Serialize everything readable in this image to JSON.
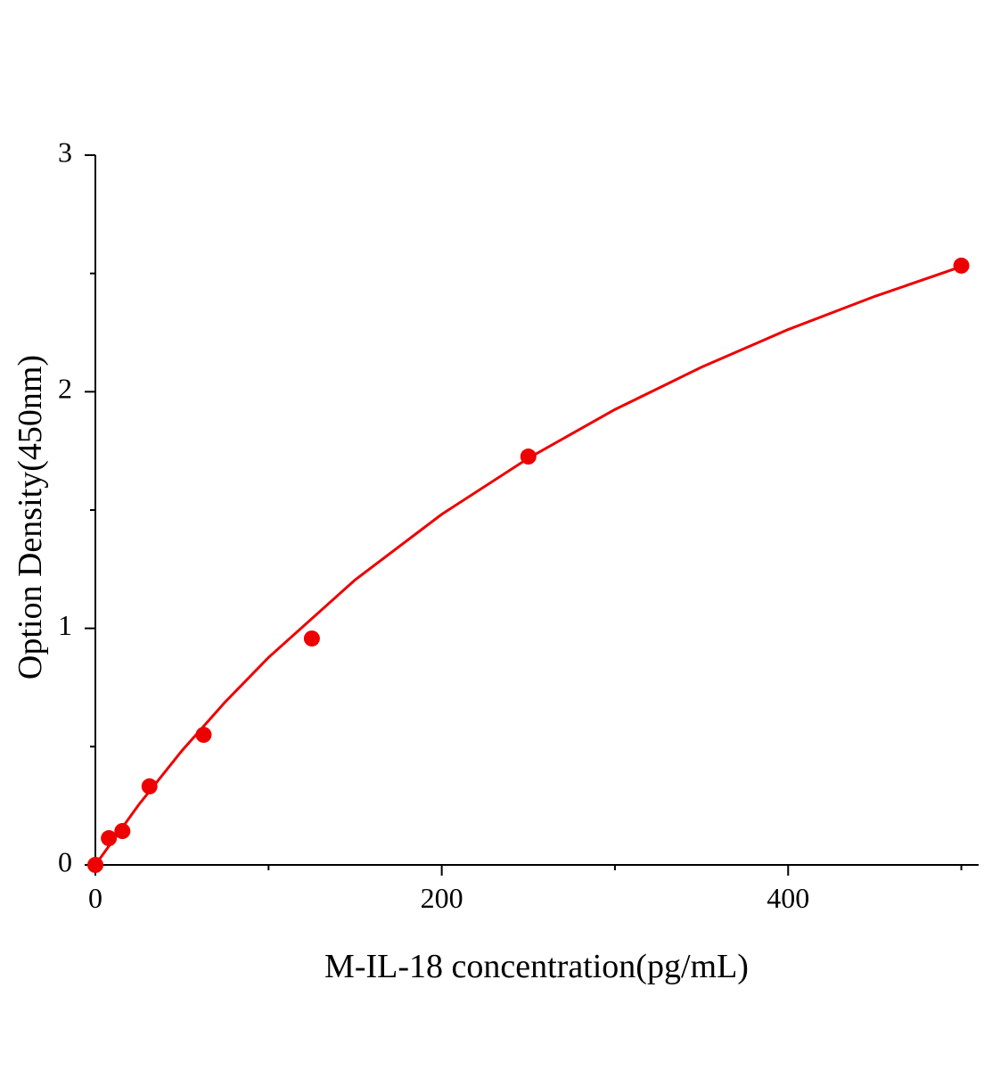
{
  "chart_data": {
    "type": "scatter",
    "x_label": "M-IL-18 concentration(pg/mL)",
    "y_label": "Option Density(450nm)",
    "xlim": [
      0,
      510
    ],
    "ylim": [
      0,
      3
    ],
    "xticks": [
      0,
      200,
      400
    ],
    "xminor_ticks": [
      100,
      300,
      500
    ],
    "yticks": [
      0,
      1,
      2,
      3
    ],
    "yminor_ticks": [
      0.5,
      1.5,
      2.5
    ],
    "series": [
      {
        "style": "markers",
        "color": "#ee0000",
        "x": [
          0,
          7.8,
          15.6,
          31.25,
          62.5,
          125,
          250,
          500
        ],
        "values": [
          0,
          0.113,
          0.143,
          0.332,
          0.55,
          0.957,
          1.726,
          2.533
        ]
      },
      {
        "style": "line",
        "color": "#ee0000",
        "x": [
          0,
          25,
          50,
          75,
          100,
          150,
          200,
          250,
          300,
          350,
          400,
          450,
          500
        ],
        "values": [
          0,
          0.254,
          0.483,
          0.689,
          0.877,
          1.205,
          1.482,
          1.719,
          1.925,
          2.104,
          2.263,
          2.403,
          2.529
        ]
      }
    ]
  }
}
